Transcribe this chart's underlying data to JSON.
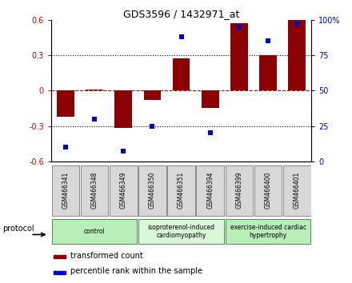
{
  "title": "GDS3596 / 1432971_at",
  "samples": [
    "GSM466341",
    "GSM466348",
    "GSM466349",
    "GSM466350",
    "GSM466351",
    "GSM466394",
    "GSM466399",
    "GSM466400",
    "GSM466401"
  ],
  "transformed_count": [
    -0.22,
    0.01,
    -0.32,
    -0.08,
    0.27,
    -0.15,
    0.57,
    0.3,
    0.6
  ],
  "percentile_rank": [
    10,
    30,
    7,
    25,
    88,
    20,
    95,
    85,
    97
  ],
  "groups": [
    {
      "label": "control",
      "start": 0,
      "end": 3,
      "color": "#b8eeb8"
    },
    {
      "label": "isoproterenol-induced\ncardiomyopathy",
      "start": 3,
      "end": 6,
      "color": "#d8f8d8"
    },
    {
      "label": "exercise-induced cardiac\nhypertrophy",
      "start": 6,
      "end": 9,
      "color": "#b8eeb8"
    }
  ],
  "bar_color": "#8b0000",
  "dot_color": "#0000cd",
  "ylim_left": [
    -0.6,
    0.6
  ],
  "ylim_right": [
    0,
    100
  ],
  "yticks_left": [
    -0.6,
    -0.3,
    0,
    0.3,
    0.6
  ],
  "ytick_labels_left": [
    "-0.6",
    "-0.3",
    "0",
    "0.3",
    "0.6"
  ],
  "yticks_right": [
    0,
    25,
    50,
    75,
    100
  ],
  "ytick_labels_right": [
    "0",
    "25",
    "50",
    "75",
    "100%"
  ],
  "hlines_dotted": [
    -0.3,
    0.3
  ],
  "hline_dashed": 0,
  "protocol_label": "protocol",
  "legend": [
    {
      "color": "#8b0000",
      "label": "transformed count"
    },
    {
      "color": "#0000cd",
      "label": "percentile rank within the sample"
    }
  ]
}
